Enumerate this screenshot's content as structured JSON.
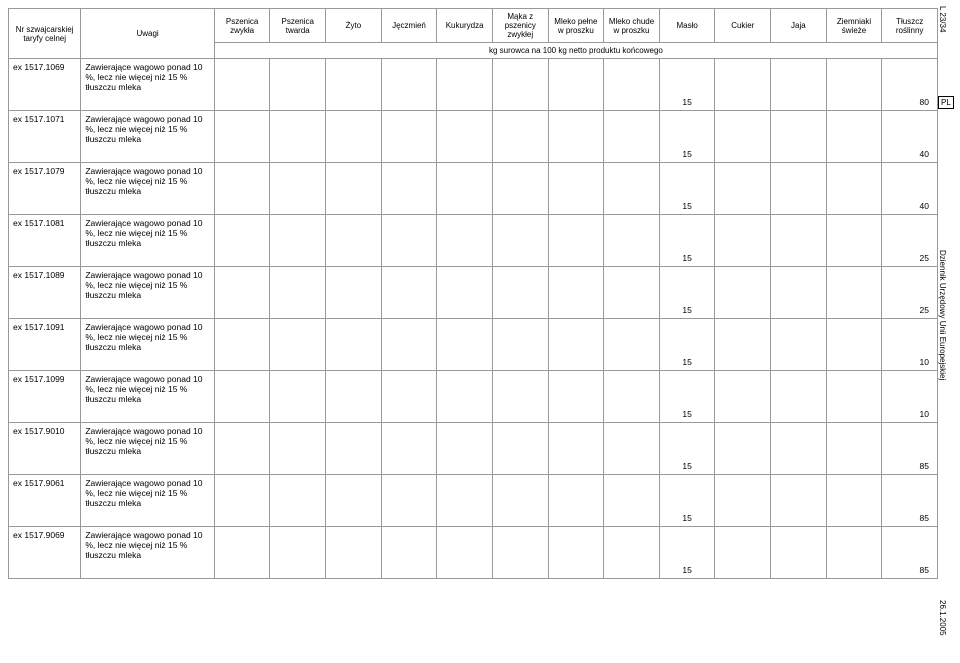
{
  "sideLabels": {
    "top": "L 23/34",
    "pl": "PL",
    "mid": "Dziennik Urzędowy Unii Europejskiej",
    "bottom": "26.1.2005"
  },
  "header": {
    "col0": "Nr szwajcarskiej taryfy celnej",
    "col1": "Uwagi",
    "cols": [
      "Pszenica zwykła",
      "Pszenica twarda",
      "Żyto",
      "Jęczmień",
      "Kukurydza",
      "Mąka z pszenicy zwykłej",
      "Mleko pełne w proszku",
      "Mleko chude w proszku",
      "Masło",
      "Cukier",
      "Jaja",
      "Ziemniaki świeże",
      "Tłuszcz roślinny"
    ],
    "subHeader": "kg surowca na 100 kg netto produktu końcowego"
  },
  "rowText": "Zawierające wagowo ponad 10 %, lecz nie więcej niż 15 % tłuszczu mleka",
  "rows": [
    {
      "code": "ex 1517.1069",
      "maslo": "15",
      "tluszcz": "80"
    },
    {
      "code": "ex 1517.1071",
      "maslo": "15",
      "tluszcz": "40"
    },
    {
      "code": "ex 1517.1079",
      "maslo": "15",
      "tluszcz": "40"
    },
    {
      "code": "ex 1517.1081",
      "maslo": "15",
      "tluszcz": "25"
    },
    {
      "code": "ex 1517.1089",
      "maslo": "15",
      "tluszcz": "25"
    },
    {
      "code": "ex 1517.1091",
      "maslo": "15",
      "tluszcz": "10"
    },
    {
      "code": "ex 1517.1099",
      "maslo": "15",
      "tluszcz": "10"
    },
    {
      "code": "ex 1517.9010",
      "maslo": "15",
      "tluszcz": "85"
    },
    {
      "code": "ex 1517.9061",
      "maslo": "15",
      "tluszcz": "85"
    },
    {
      "code": "ex 1517.9069",
      "maslo": "15",
      "tluszcz": "85"
    }
  ]
}
